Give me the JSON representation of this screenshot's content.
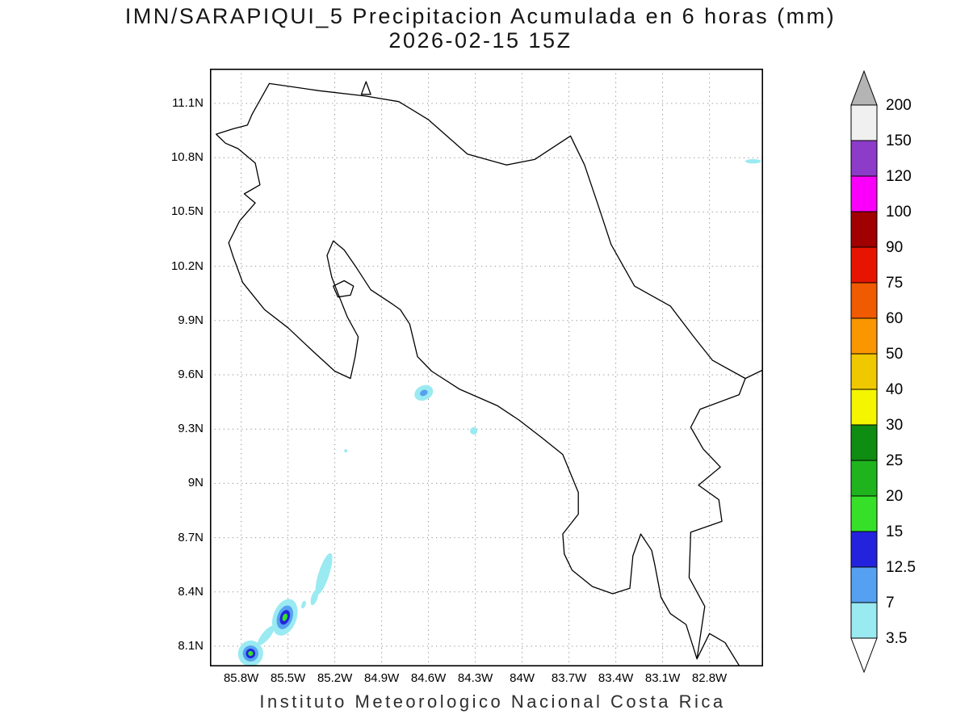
{
  "title": {
    "line1": "IMN/SARAPIQUI_5 Precipitacion Acumulada en 6 horas (mm)",
    "line2": "2026-02-15 15Z"
  },
  "footer": "Instituto Meteorologico Nacional Costa Rica",
  "chart_data": {
    "type": "heatmap",
    "subtype": "filled-contour accumulated precipitation map (GrADS style)",
    "title": "IMN/SARAPIQUI_5 Precipitacion Acumulada en 6 horas (mm)",
    "subtitle": "2026-02-15 15Z",
    "region": "Costa Rica",
    "units": "mm",
    "grid": "dotted",
    "legend_position": "right vertical colorbar",
    "lon_west_range": [
      86.0,
      82.46
    ],
    "lat_north_range": [
      7.99,
      11.29
    ],
    "lat_ticks": [
      [
        11.1,
        "11.1N"
      ],
      [
        10.8,
        "10.8N"
      ],
      [
        10.5,
        "10.5N"
      ],
      [
        10.2,
        "10.2N"
      ],
      [
        9.9,
        "9.9N"
      ],
      [
        9.6,
        "9.6N"
      ],
      [
        9.3,
        "9.3N"
      ],
      [
        9.0,
        "9N"
      ],
      [
        8.7,
        "8.7N"
      ],
      [
        8.4,
        "8.4N"
      ],
      [
        8.1,
        "8.1N"
      ]
    ],
    "lon_ticks": [
      [
        85.8,
        "85.8W"
      ],
      [
        85.5,
        "85.5W"
      ],
      [
        85.2,
        "85.2W"
      ],
      [
        84.9,
        "84.9W"
      ],
      [
        84.6,
        "84.6W"
      ],
      [
        84.3,
        "84.3W"
      ],
      [
        84.0,
        "84W"
      ],
      [
        83.7,
        "83.7W"
      ],
      [
        83.4,
        "83.4W"
      ],
      [
        83.1,
        "83.1W"
      ],
      [
        82.8,
        "82.8W"
      ]
    ],
    "colorbar": {
      "levels": [
        "3.5",
        "7",
        "12.5",
        "15",
        "20",
        "25",
        "30",
        "40",
        "50",
        "60",
        "75",
        "90",
        "100",
        "120",
        "150",
        "200"
      ],
      "box_colors_bottom_to_top": [
        "#9aeaf2",
        "#55a0f0",
        "#2323dd",
        "#37e028",
        "#1fb41e",
        "#0f8c12",
        "#f5f500",
        "#f0c800",
        "#fa9600",
        "#f05a00",
        "#e61400",
        "#a00000",
        "#fa00fa",
        "#8c3cc8",
        "#f0f0f0"
      ],
      "under_color": "#ffffff",
      "over_color": "#b4b4b4"
    },
    "coastline_lonlat": [
      [
        85.9,
        10.88
      ],
      [
        85.96,
        10.93
      ],
      [
        85.85,
        10.96
      ],
      [
        85.76,
        10.98
      ],
      [
        85.73,
        11.04
      ],
      [
        85.62,
        11.21
      ],
      [
        85.3,
        11.17
      ],
      [
        85.0,
        11.14
      ],
      [
        84.79,
        11.11
      ],
      [
        84.6,
        11.01
      ],
      [
        84.35,
        10.82
      ],
      [
        84.1,
        10.76
      ],
      [
        83.92,
        10.79
      ],
      [
        83.69,
        10.92
      ],
      [
        83.6,
        10.76
      ],
      [
        83.51,
        10.53
      ],
      [
        83.43,
        10.32
      ],
      [
        83.28,
        10.09
      ],
      [
        83.05,
        9.98
      ],
      [
        82.9,
        9.81
      ],
      [
        82.78,
        9.68
      ],
      [
        82.57,
        9.58
      ],
      [
        82.61,
        9.49
      ],
      [
        82.86,
        9.41
      ],
      [
        82.92,
        9.31
      ],
      [
        82.84,
        9.19
      ],
      [
        82.73,
        9.09
      ],
      [
        82.87,
        8.99
      ],
      [
        82.74,
        8.91
      ],
      [
        82.72,
        8.79
      ],
      [
        82.92,
        8.73
      ],
      [
        82.93,
        8.48
      ],
      [
        82.83,
        8.32
      ],
      [
        82.88,
        8.03
      ],
      [
        82.95,
        8.22
      ],
      [
        83.05,
        8.28
      ],
      [
        83.11,
        8.37
      ],
      [
        83.15,
        8.55
      ],
      [
        83.17,
        8.63
      ],
      [
        83.24,
        8.72
      ],
      [
        83.29,
        8.6
      ],
      [
        83.31,
        8.42
      ],
      [
        83.42,
        8.39
      ],
      [
        83.55,
        8.43
      ],
      [
        83.68,
        8.52
      ],
      [
        83.73,
        8.61
      ],
      [
        83.74,
        8.72
      ],
      [
        83.64,
        8.83
      ],
      [
        83.64,
        8.95
      ],
      [
        83.74,
        9.16
      ],
      [
        83.87,
        9.25
      ],
      [
        84.02,
        9.35
      ],
      [
        84.16,
        9.43
      ],
      [
        84.4,
        9.52
      ],
      [
        84.58,
        9.62
      ],
      [
        84.67,
        9.7
      ],
      [
        84.72,
        9.88
      ],
      [
        84.78,
        9.96
      ],
      [
        84.83,
        9.99
      ],
      [
        84.97,
        10.07
      ],
      [
        85.06,
        10.19
      ],
      [
        85.14,
        10.29
      ],
      [
        85.21,
        10.34
      ],
      [
        85.25,
        10.26
      ],
      [
        85.22,
        10.14
      ],
      [
        85.18,
        10.05
      ],
      [
        85.12,
        9.92
      ],
      [
        85.05,
        9.81
      ],
      [
        85.07,
        9.7
      ],
      [
        85.1,
        9.58
      ],
      [
        85.2,
        9.62
      ],
      [
        85.34,
        9.73
      ],
      [
        85.5,
        9.86
      ],
      [
        85.65,
        9.96
      ],
      [
        85.79,
        10.11
      ],
      [
        85.85,
        10.25
      ],
      [
        85.88,
        10.33
      ],
      [
        85.81,
        10.45
      ],
      [
        85.71,
        10.55
      ],
      [
        85.78,
        10.6
      ],
      [
        85.68,
        10.65
      ],
      [
        85.71,
        10.77
      ],
      [
        85.82,
        10.85
      ],
      [
        85.9,
        10.88
      ]
    ],
    "islands": [
      [
        [
          85.21,
          10.09
        ],
        [
          85.14,
          10.12
        ],
        [
          85.08,
          10.09
        ],
        [
          85.1,
          10.04
        ],
        [
          85.18,
          10.03
        ],
        [
          85.21,
          10.09
        ]
      ],
      [
        [
          85.0,
          11.22
        ],
        [
          84.97,
          11.15
        ],
        [
          85.03,
          11.15
        ],
        [
          85.0,
          11.22
        ]
      ]
    ],
    "extra_lines": [
      [
        [
          82.57,
          9.58
        ],
        [
          82.45,
          9.63
        ]
      ],
      [
        [
          82.88,
          8.03
        ],
        [
          82.8,
          8.17
        ],
        [
          82.7,
          8.12
        ],
        [
          82.6,
          7.98
        ]
      ]
    ],
    "precip_features": [
      {
        "lon": 84.63,
        "lat": 9.5,
        "rot": -25,
        "layers": [
          {
            "color": "#9aeaf2",
            "rx": 0.062,
            "ry": 0.04
          },
          {
            "color": "#55a0f0",
            "rx": 0.026,
            "ry": 0.016
          }
        ]
      },
      {
        "lon": 84.31,
        "lat": 9.29,
        "rot": 0,
        "layers": [
          {
            "color": "#9aeaf2",
            "rx": 0.024,
            "ry": 0.02
          }
        ]
      },
      {
        "lon": 85.13,
        "lat": 9.18,
        "rot": 0,
        "layers": [
          {
            "color": "#9aeaf2",
            "rx": 0.01,
            "ry": 0.009
          }
        ]
      },
      {
        "lon": 82.52,
        "lat": 10.78,
        "rot": 0,
        "layers": [
          {
            "color": "#9aeaf2",
            "rx": 0.05,
            "ry": 0.012
          }
        ]
      },
      {
        "lon": 85.27,
        "lat": 8.5,
        "rot": 18,
        "layers": [
          {
            "color": "#9aeaf2",
            "rx": 0.034,
            "ry": 0.12
          }
        ]
      },
      {
        "lon": 85.33,
        "lat": 8.37,
        "rot": 18,
        "layers": [
          {
            "color": "#9aeaf2",
            "rx": 0.02,
            "ry": 0.045
          }
        ]
      },
      {
        "lon": 85.4,
        "lat": 8.33,
        "rot": 20,
        "layers": [
          {
            "color": "#9aeaf2",
            "rx": 0.013,
            "ry": 0.022
          }
        ]
      },
      {
        "lon": 85.52,
        "lat": 8.26,
        "rot": 20,
        "layers": [
          {
            "color": "#9aeaf2",
            "rx": 0.075,
            "ry": 0.105
          },
          {
            "color": "#55a0f0",
            "rx": 0.048,
            "ry": 0.068
          },
          {
            "color": "#2323dd",
            "rx": 0.03,
            "ry": 0.042
          },
          {
            "color": "#37e028",
            "rx": 0.015,
            "ry": 0.022
          }
        ]
      },
      {
        "lon": 85.64,
        "lat": 8.16,
        "rot": 40,
        "layers": [
          {
            "color": "#9aeaf2",
            "rx": 0.026,
            "ry": 0.068
          }
        ]
      },
      {
        "lon": 85.74,
        "lat": 8.06,
        "rot": 10,
        "layers": [
          {
            "color": "#9aeaf2",
            "rx": 0.08,
            "ry": 0.072
          },
          {
            "color": "#55a0f0",
            "rx": 0.05,
            "ry": 0.044
          },
          {
            "color": "#2323dd",
            "rx": 0.03,
            "ry": 0.027
          },
          {
            "color": "#37e028",
            "rx": 0.016,
            "ry": 0.014
          }
        ]
      }
    ]
  }
}
